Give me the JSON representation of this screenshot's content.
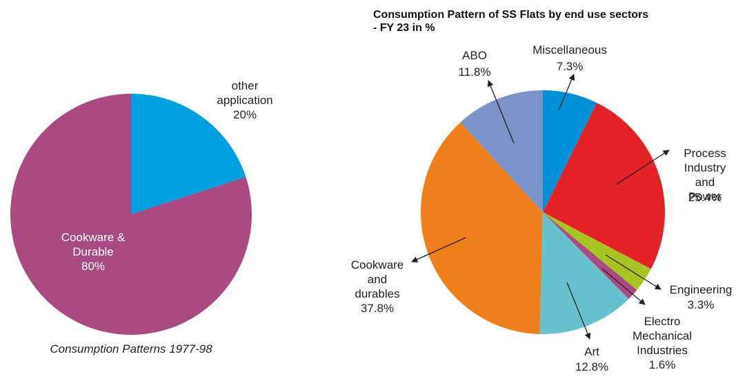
{
  "chart_data": [
    {
      "type": "pie",
      "title": "Consumption Patterns 1977-98",
      "categories": [
        "other\napplication",
        "Cookware &\nDurable"
      ],
      "values": [
        20,
        80
      ],
      "value_labels": [
        "20%",
        "80%"
      ],
      "colors": [
        "#00a0e0",
        "#a94a82"
      ]
    },
    {
      "type": "pie",
      "title": "Consumption Pattern of SS Flats by end use sectors - FY 23 in %",
      "categories": [
        "Miscellaneous",
        "Process\nIndustry\nand Power",
        "Engineering",
        "Electro\nMechanical\nIndustries",
        "Art",
        "Cookware\nand\ndurables",
        "ABO"
      ],
      "values": [
        7.3,
        25.4,
        3.3,
        1.6,
        12.8,
        37.8,
        11.8
      ],
      "value_labels": [
        "7.3%",
        "25.4%",
        "3.3%",
        "1.6%",
        "12.8%",
        "37.8%",
        "11.8%"
      ],
      "colors": [
        "#0090d8",
        "#e32227",
        "#a8c523",
        "#a94a82",
        "#67c2ce",
        "#ee7f1d",
        "#7b93c9"
      ]
    }
  ]
}
